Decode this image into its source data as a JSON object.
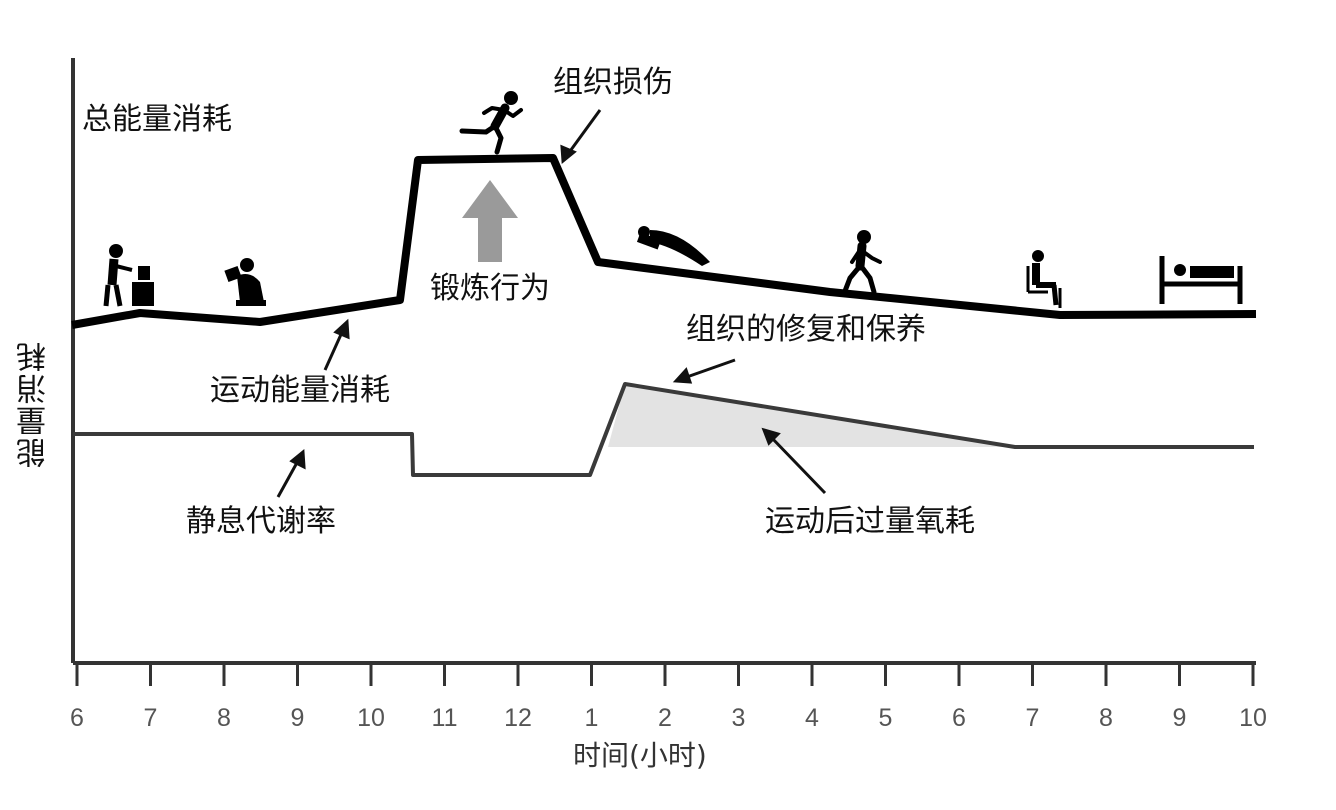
{
  "title": "总能量消耗",
  "y_axis_label": "能量消耗",
  "x_axis_label": "时间(小时)",
  "x_ticks": [
    "6",
    "7",
    "8",
    "9",
    "10",
    "11",
    "12",
    "1",
    "2",
    "3",
    "4",
    "5",
    "6",
    "7",
    "8",
    "9",
    "10"
  ],
  "annotations": {
    "tissue_damage": "组织损伤",
    "exercise": "锻炼行为",
    "activity_energy": "运动能量消耗",
    "repair": "组织的修复和保养",
    "resting_rate": "静息代谢率",
    "epoc": "运动后过量氧耗"
  },
  "icons": [
    "person-cooking-icon",
    "person-reading-icon",
    "person-running-icon",
    "person-lying-icon",
    "person-walking-icon",
    "person-sitting-icon",
    "person-in-bed-icon"
  ],
  "colors": {
    "line": "#000000",
    "fill": "#e3e3e3",
    "arrow": "#9a9a9a",
    "axis": "#333333"
  }
}
